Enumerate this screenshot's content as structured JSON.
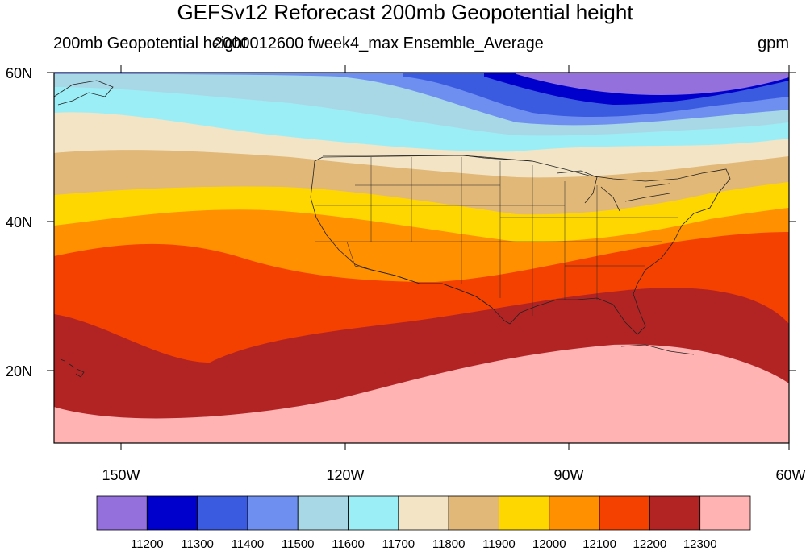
{
  "title": "GEFSv12 Reforecast 200mb Geopotential height",
  "subtitle_left": "200mb Geopotential height",
  "subtitle_center": "2000012600 fweek4_max Ensemble_Average",
  "subtitle_right": "gpm",
  "map": {
    "projection": "cylindrical-equidistant",
    "lon_range": [
      -160,
      -60
    ],
    "lat_range": [
      10,
      60
    ],
    "lon_ticks": [
      "150W",
      "120W",
      "90W",
      "60W"
    ],
    "lat_ticks": [
      "60N",
      "40N",
      "20N"
    ],
    "field": "200mb geopotential height",
    "units": "gpm"
  },
  "colorbar": {
    "colors": [
      "#9370db",
      "#0000cd",
      "#3a5be0",
      "#6e8ff0",
      "#a8d8e6",
      "#9ceef6",
      "#f2e4c4",
      "#e1b877",
      "#ffd700",
      "#ff9000",
      "#f54100",
      "#b22424",
      "#ffb3b3"
    ],
    "levels": [
      "11200",
      "11300",
      "11400",
      "11500",
      "11600",
      "11700",
      "11800",
      "11900",
      "12000",
      "12100",
      "12200",
      "12300"
    ]
  }
}
